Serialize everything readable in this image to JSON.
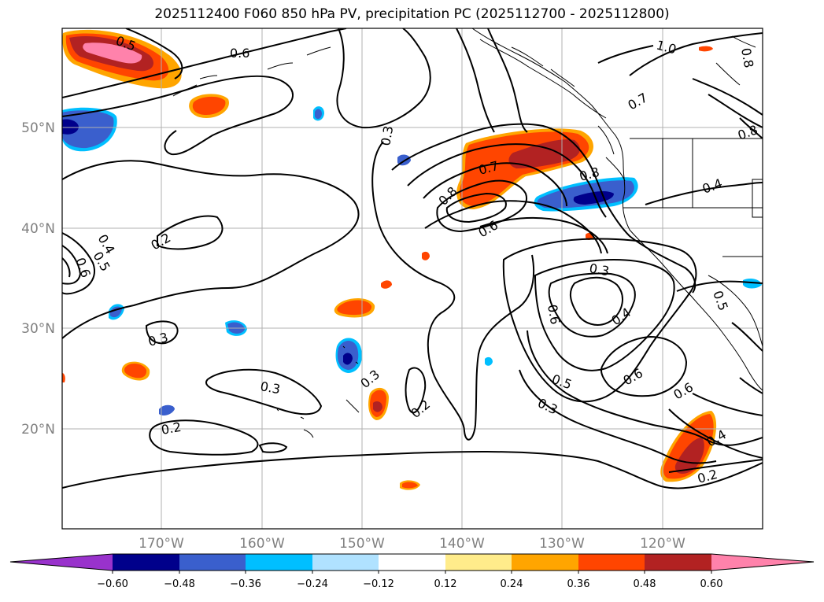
{
  "title": "2025112400 F060 850 hPa PV, precipitation PC (2025112700 - 2025112800)",
  "map": {
    "lon_ticks": [
      "170°W",
      "160°W",
      "150°W",
      "140°W",
      "130°W",
      "120°W"
    ],
    "lat_ticks": [
      "50°N",
      "40°N",
      "30°N",
      "20°N"
    ],
    "contour_labels": [
      "0.5",
      "0.6",
      "1.0",
      "0.8",
      "0.7",
      "0.3",
      "0.7",
      "0.8",
      "0.8",
      "0.6",
      "0.4",
      "0.8",
      "0.4",
      "0.5",
      "0.6",
      "0.2",
      "0.3",
      "0.3",
      "0.2",
      "0.3",
      "0.2",
      "0.3",
      "0.6",
      "0.4",
      "0.5",
      "0.6",
      "0.3",
      "0.6",
      "0.4",
      "0.2",
      "0.5"
    ]
  },
  "colorbar": {
    "ticks": [
      "−0.60",
      "−0.48",
      "−0.36",
      "−0.24",
      "−0.12",
      "0.12",
      "0.24",
      "0.36",
      "0.48",
      "0.60"
    ],
    "colors": [
      "#9932cc",
      "#00008b",
      "#3a5fcd",
      "#00bfff",
      "#b0e2ff",
      "#ffffff",
      "#ffec8b",
      "#ffa500",
      "#ff4500",
      "#b22222",
      "#ff82ab"
    ]
  }
}
